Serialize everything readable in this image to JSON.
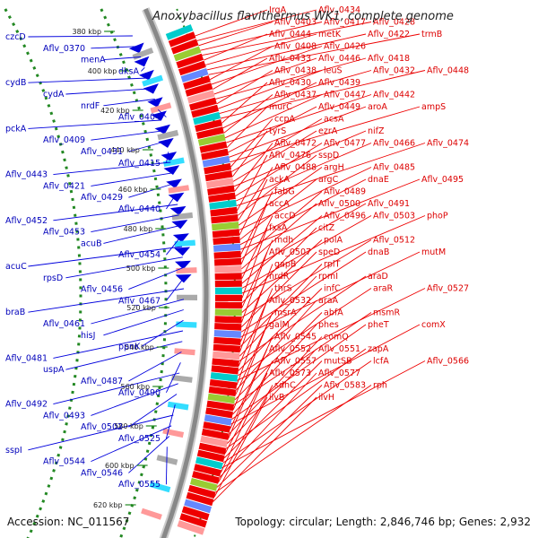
{
  "title": "Anoxybacillus flavithermus WK1, complete genome",
  "accession": "Accession: NC_011567",
  "topology": "Topology: circular; Length: 2,846,746 bp; Genes: 2,932",
  "colors": {
    "forward": "#ee0000",
    "reverse": "#0000dd",
    "backbone": "#888888",
    "ticks": "#228822"
  },
  "kbp_ticks": [
    "380 kbp",
    "400 kbp",
    "420 kbp",
    "440 kbp",
    "460 kbp",
    "480 kbp",
    "500 kbp",
    "520 kbp",
    "540 kbp",
    "560 kbp",
    "580 kbp",
    "600 kbp",
    "620 kbp"
  ],
  "forward_labels": [
    "IrgA",
    "Aflv_0434",
    "Aflv_0403",
    "Aflv_0417",
    "Aflv_0428",
    "Aflv_0444",
    "metK",
    "Aflv_0422",
    "trmB",
    "Aflv_0408",
    "Aflv_0426",
    "Aflv_0433",
    "Aflv_0446",
    "Aflv_0418",
    "Aflv_0438",
    "leuS",
    "Aflv_0432",
    "Aflv_0448",
    "Aflv_0430",
    "Aflv_0439",
    "Aflv_0437",
    "Aflv_0447",
    "Aflv_0442",
    "murC",
    "Aflv_0449",
    "aroA",
    "ampS",
    "ccpA",
    "acsA",
    "tyrS",
    "ezrA",
    "nifZ",
    "Aflv_0472",
    "Aflv_0477",
    "Aflv_0466",
    "Aflv_0474",
    "Aflv_0476",
    "sspD",
    "Aflv_0488",
    "argH",
    "Aflv_0485",
    "ackA",
    "argC",
    "dnaE",
    "Aflv_0495",
    "fabG",
    "Aflv_0489",
    "accA",
    "Aflv_0500",
    "Aflv_0491",
    "accD",
    "Aflv_0496",
    "Aflv_0503",
    "phoP",
    "fxsA",
    "citZ",
    "mdh",
    "polA",
    "Aflv_0512",
    "Aflv_0507",
    "speD",
    "dnaB",
    "mutM",
    "gapB",
    "rplT",
    "nrdR",
    "rpmI",
    "araD",
    "thrS",
    "infC",
    "araR",
    "Aflv_0527",
    "Aflv_0532",
    "araA",
    "msrA",
    "abfA",
    "msmR",
    "galM",
    "phes",
    "pheT",
    "comX",
    "Aflv_0545",
    "comQ",
    "Aflv_0552",
    "Aflv_0551",
    "zapA",
    "Aflv_0557",
    "mutSB",
    "lcfA",
    "Aflv_0566",
    "Aflv_0573",
    "Aflv_0577",
    "sdhC",
    "Aflv_0583",
    "rph",
    "ilvB",
    "ilvH"
  ],
  "reverse_labels": [
    "czcD",
    "Aflv_0370",
    "menA",
    "dksA",
    "cydB",
    "cydA",
    "nrdF",
    "Aflv_0404",
    "pckA",
    "Aflv_0409",
    "Aflv_0431",
    "Aflv_0415",
    "Aflv_0443",
    "Aflv_0421",
    "Aflv_0429",
    "Aflv_0440",
    "Aflv_0452",
    "Aflv_0453",
    "acuB",
    "Aflv_0454",
    "acuC",
    "rpsD",
    "Aflv_0456",
    "Aflv_0467",
    "braB",
    "Aflv_0461",
    "hisJ",
    "ppnK",
    "Aflv_0481",
    "uspA",
    "Aflv_0487",
    "Aflv_0490",
    "Aflv_0492",
    "Aflv_0493",
    "Aflv_0502",
    "Aflv_0525",
    "sspI",
    "Aflv_0544",
    "Aflv_0546",
    "Aflv_0555"
  ]
}
